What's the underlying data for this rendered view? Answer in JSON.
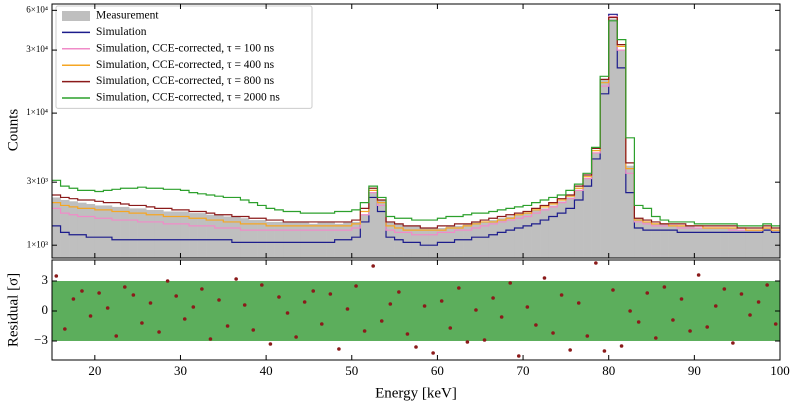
{
  "chart_data": [
    {
      "type": "histogram",
      "ylabel": "Counts",
      "log_y": true,
      "xlim": [
        15,
        100
      ],
      "xticks": [
        20,
        30,
        40,
        50,
        60,
        70,
        80,
        90,
        100
      ],
      "ylim": [
        800,
        67000
      ],
      "yticks": [
        {
          "value": 1000,
          "label": "1×10³"
        },
        {
          "value": 3000,
          "label": "3×10³"
        },
        {
          "value": 10000,
          "label": "1×10⁴"
        },
        {
          "value": 30000,
          "label": "3×10⁴"
        },
        {
          "value": 60000,
          "label": "6×10⁴"
        }
      ],
      "legend": "upper left",
      "bins": [
        15,
        16,
        17,
        18,
        19,
        20,
        21,
        22,
        23,
        24,
        25,
        26,
        27,
        28,
        29,
        30,
        31,
        32,
        33,
        34,
        35,
        36,
        37,
        38,
        39,
        40,
        41,
        42,
        43,
        44,
        45,
        46,
        47,
        48,
        49,
        50,
        51,
        52,
        53,
        54,
        55,
        56,
        57,
        58,
        59,
        60,
        61,
        62,
        63,
        64,
        65,
        66,
        67,
        68,
        69,
        70,
        71,
        72,
        73,
        74,
        75,
        76,
        77,
        78,
        79,
        80,
        81,
        82,
        83,
        84,
        85,
        86,
        87,
        88,
        89,
        90,
        91,
        92,
        93,
        94,
        95,
        96,
        97,
        98,
        99,
        100
      ],
      "series": [
        {
          "name": "Measurement",
          "color": "#bfbfbf",
          "fill": true,
          "values": [
            2300,
            2200,
            2150,
            2100,
            2050,
            2000,
            2000,
            1950,
            1950,
            1900,
            1900,
            1850,
            1850,
            1800,
            1800,
            1800,
            1750,
            1750,
            1700,
            1700,
            1650,
            1650,
            1600,
            1550,
            1550,
            1500,
            1500,
            1500,
            1500,
            1500,
            1450,
            1500,
            1500,
            1450,
            1500,
            1500,
            1700,
            2500,
            2200,
            1500,
            1450,
            1400,
            1400,
            1350,
            1350,
            1350,
            1400,
            1400,
            1450,
            1500,
            1500,
            1550,
            1600,
            1650,
            1700,
            1750,
            1850,
            1900,
            2000,
            2150,
            2300,
            2600,
            3200,
            5000,
            18000,
            52000,
            30000,
            4000,
            1600,
            1500,
            1450,
            1450,
            1400,
            1400,
            1400,
            1350,
            1350,
            1350,
            1350,
            1350,
            1300,
            1300,
            1300,
            1350,
            1300
          ]
        },
        {
          "name": "Simulation",
          "color": "#1c1c8c",
          "values": [
            1400,
            1250,
            1200,
            1200,
            1150,
            1150,
            1150,
            1100,
            1100,
            1100,
            1100,
            1100,
            1100,
            1100,
            1100,
            1100,
            1100,
            1100,
            1100,
            1100,
            1100,
            1050,
            1050,
            1050,
            1050,
            1050,
            1050,
            1050,
            1050,
            1050,
            1050,
            1050,
            1050,
            1100,
            1100,
            1150,
            1500,
            2300,
            1800,
            1150,
            1100,
            1050,
            1050,
            1000,
            1000,
            1050,
            1050,
            1100,
            1100,
            1150,
            1150,
            1200,
            1250,
            1300,
            1350,
            1400,
            1450,
            1550,
            1650,
            1750,
            1900,
            2200,
            2800,
            4500,
            14000,
            56000,
            22000,
            2500,
            1350,
            1300,
            1300,
            1300,
            1300,
            1250,
            1250,
            1250,
            1250,
            1250,
            1250,
            1250,
            1250,
            1250,
            1250,
            1300,
            1250
          ]
        },
        {
          "name": "Simulation, CCE-corrected, τ = 100 ns",
          "color": "#f08bc8",
          "values": [
            1900,
            1750,
            1700,
            1650,
            1650,
            1600,
            1600,
            1550,
            1550,
            1550,
            1500,
            1500,
            1500,
            1450,
            1450,
            1450,
            1400,
            1400,
            1400,
            1350,
            1350,
            1350,
            1300,
            1300,
            1300,
            1300,
            1300,
            1300,
            1300,
            1300,
            1300,
            1300,
            1300,
            1300,
            1300,
            1350,
            1700,
            2500,
            2000,
            1300,
            1250,
            1250,
            1200,
            1200,
            1200,
            1250,
            1250,
            1300,
            1300,
            1350,
            1400,
            1450,
            1500,
            1550,
            1600,
            1650,
            1750,
            1850,
            1950,
            2100,
            2250,
            2600,
            3200,
            5000,
            16000,
            54000,
            30000,
            3500,
            1500,
            1450,
            1400,
            1400,
            1400,
            1350,
            1350,
            1350,
            1350,
            1350,
            1350,
            1300,
            1300,
            1300,
            1300,
            1350,
            1300
          ]
        },
        {
          "name": "Simulation, CCE-corrected, τ = 400 ns",
          "color": "#f5a623",
          "values": [
            2100,
            2000,
            1950,
            1900,
            1900,
            1850,
            1850,
            1800,
            1800,
            1750,
            1750,
            1700,
            1700,
            1650,
            1650,
            1650,
            1600,
            1600,
            1550,
            1550,
            1500,
            1500,
            1450,
            1450,
            1450,
            1400,
            1400,
            1400,
            1400,
            1400,
            1400,
            1400,
            1400,
            1400,
            1400,
            1450,
            1800,
            2600,
            2100,
            1400,
            1350,
            1300,
            1300,
            1300,
            1300,
            1300,
            1350,
            1350,
            1400,
            1450,
            1500,
            1500,
            1550,
            1600,
            1700,
            1750,
            1850,
            1950,
            2050,
            2200,
            2350,
            2700,
            3300,
            5200,
            17000,
            53000,
            32000,
            3800,
            1550,
            1500,
            1450,
            1450,
            1400,
            1400,
            1400,
            1400,
            1350,
            1350,
            1350,
            1350,
            1350,
            1300,
            1300,
            1350,
            1300
          ]
        },
        {
          "name": "Simulation, CCE-corrected, τ = 800 ns",
          "color": "#8b1a1a",
          "values": [
            2400,
            2300,
            2250,
            2200,
            2200,
            2150,
            2100,
            2100,
            2050,
            2000,
            2000,
            1950,
            1900,
            1900,
            1850,
            1850,
            1800,
            1800,
            1750,
            1700,
            1700,
            1650,
            1650,
            1600,
            1600,
            1550,
            1550,
            1500,
            1500,
            1500,
            1500,
            1500,
            1500,
            1500,
            1500,
            1550,
            1900,
            2700,
            2200,
            1500,
            1450,
            1400,
            1400,
            1350,
            1350,
            1400,
            1400,
            1450,
            1450,
            1500,
            1550,
            1600,
            1650,
            1700,
            1750,
            1800,
            1900,
            2000,
            2100,
            2250,
            2400,
            2800,
            3400,
            5400,
            18000,
            53000,
            33000,
            4200,
            1600,
            1550,
            1500,
            1450,
            1450,
            1450,
            1400,
            1400,
            1400,
            1400,
            1400,
            1400,
            1350,
            1350,
            1350,
            1400,
            1350
          ]
        },
        {
          "name": "Simulation, CCE-corrected, τ = 2000 ns",
          "color": "#2ca02c",
          "values": [
            3100,
            2800,
            2700,
            2600,
            2600,
            2550,
            2600,
            2650,
            2700,
            2700,
            2750,
            2700,
            2700,
            2650,
            2650,
            2600,
            2500,
            2450,
            2400,
            2350,
            2300,
            2300,
            2200,
            2100,
            2000,
            1900,
            1850,
            1800,
            1800,
            1750,
            1750,
            1750,
            1750,
            1800,
            1800,
            1850,
            2100,
            2800,
            2300,
            1650,
            1600,
            1600,
            1550,
            1550,
            1550,
            1600,
            1650,
            1650,
            1700,
            1750,
            1750,
            1800,
            1850,
            1900,
            1950,
            2000,
            2100,
            2200,
            2300,
            2400,
            2600,
            2900,
            3500,
            5500,
            19000,
            50000,
            36000,
            6500,
            2000,
            1900,
            1650,
            1550,
            1500,
            1500,
            1500,
            1450,
            1450,
            1450,
            1450,
            1450,
            1400,
            1400,
            1400,
            1450,
            1400
          ]
        }
      ]
    },
    {
      "type": "scatter",
      "xlabel": "Energy [keV]",
      "ylabel": "Residual [σ]",
      "xlim": [
        15,
        100
      ],
      "xticks": [
        20,
        30,
        40,
        50,
        60,
        70,
        80,
        90,
        100
      ],
      "ylim": [
        -4.9,
        5.1
      ],
      "yticks": [
        {
          "value": -3,
          "label": "−3"
        },
        0,
        3
      ],
      "band": [
        -3,
        3
      ],
      "band_color": "#5cae5c",
      "color": "#8b1a1a",
      "x": [
        15.5,
        16.5,
        17.5,
        18.5,
        19.5,
        20.5,
        21.5,
        22.5,
        23.5,
        24.5,
        25.5,
        26.5,
        27.5,
        28.5,
        29.5,
        30.5,
        31.5,
        32.5,
        33.5,
        34.5,
        35.5,
        36.5,
        37.5,
        38.5,
        39.5,
        40.5,
        41.5,
        42.5,
        43.5,
        44.5,
        45.5,
        46.5,
        47.5,
        48.5,
        49.5,
        50.5,
        51.5,
        52.5,
        53.5,
        54.5,
        55.5,
        56.5,
        57.5,
        58.5,
        59.5,
        60.5,
        61.5,
        62.5,
        63.5,
        64.5,
        65.5,
        66.5,
        67.5,
        68.5,
        69.5,
        70.5,
        71.5,
        72.5,
        73.5,
        74.5,
        75.5,
        76.5,
        77.5,
        78.5,
        79.5,
        80.5,
        81.5,
        82.5,
        83.5,
        84.5,
        85.5,
        86.5,
        87.5,
        88.5,
        89.5,
        90.5,
        91.5,
        92.5,
        93.5,
        94.5,
        95.5,
        96.5,
        97.5,
        98.5,
        99.5
      ],
      "values": [
        3.5,
        -1.8,
        1.2,
        2.0,
        -0.5,
        1.8,
        0.3,
        -2.5,
        2.4,
        1.6,
        -1.2,
        0.8,
        -2.1,
        3.0,
        1.5,
        -0.8,
        0.4,
        2.2,
        -2.8,
        1.1,
        -1.5,
        3.2,
        0.6,
        -1.9,
        2.6,
        -3.3,
        1.4,
        -0.2,
        -2.6,
        0.9,
        2.0,
        -1.3,
        1.7,
        -3.8,
        0.2,
        2.5,
        -2.0,
        4.5,
        -1.0,
        0.7,
        1.9,
        -2.3,
        -3.6,
        0.5,
        -4.2,
        1.0,
        -1.7,
        2.3,
        -3.1,
        0.1,
        -2.9,
        1.3,
        -0.6,
        2.8,
        -4.5,
        0.4,
        -1.4,
        3.3,
        -2.2,
        1.6,
        -3.9,
        0.8,
        -2.5,
        4.8,
        -4.0,
        2.1,
        -3.5,
        0.0,
        -1.1,
        1.8,
        -2.7,
        2.4,
        -0.9,
        1.2,
        -2.0,
        3.6,
        -1.6,
        0.5,
        2.2,
        -3.2,
        1.7,
        -0.4,
        0.9,
        2.6,
        -1.3
      ]
    }
  ]
}
